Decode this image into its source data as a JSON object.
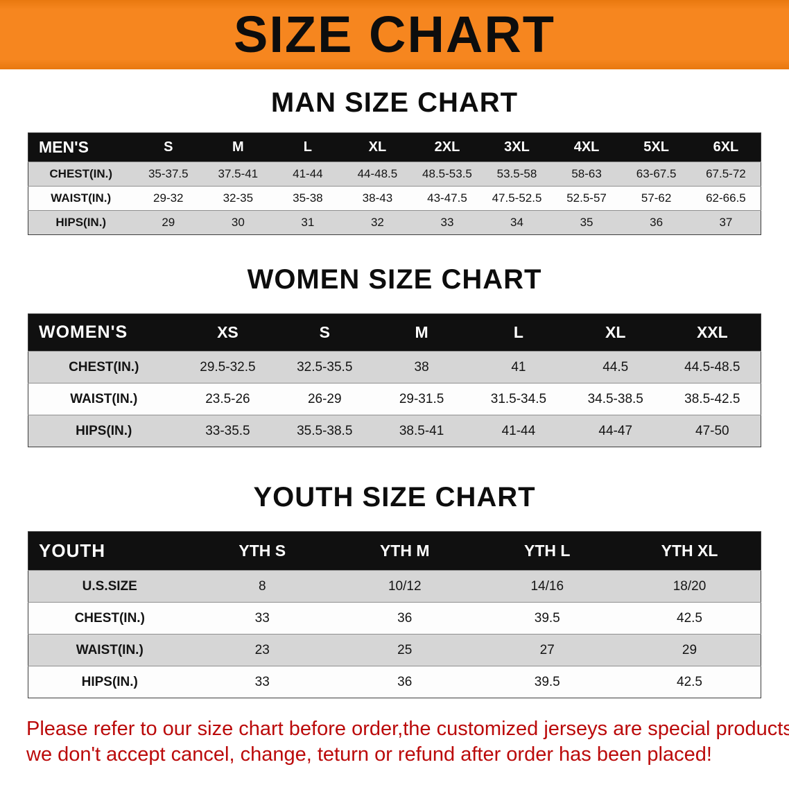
{
  "banner": {
    "title": "SIZE CHART"
  },
  "colors": {
    "banner_bg": "#f6861f",
    "header_bg": "#101010",
    "row_alt_bg": "#d6d6d6",
    "footer_text": "#bb0a0a"
  },
  "sections": [
    {
      "id": "men",
      "heading": "MAN SIZE CHART",
      "header": [
        "MEN'S",
        "S",
        "M",
        "L",
        "XL",
        "2XL",
        "3XL",
        "4XL",
        "5XL",
        "6XL"
      ],
      "rows": [
        [
          "CHEST(IN.)",
          "35-37.5",
          "37.5-41",
          "41-44",
          "44-48.5",
          "48.5-53.5",
          "53.5-58",
          "58-63",
          "63-67.5",
          "67.5-72"
        ],
        [
          "WAIST(IN.)",
          "29-32",
          "32-35",
          "35-38",
          "38-43",
          "43-47.5",
          "47.5-52.5",
          "52.5-57",
          "57-62",
          "62-66.5"
        ],
        [
          "HIPS(IN.)",
          "29",
          "30",
          "31",
          "32",
          "33",
          "34",
          "35",
          "36",
          "37"
        ]
      ]
    },
    {
      "id": "women",
      "heading": "WOMEN SIZE CHART",
      "header": [
        "WOMEN'S",
        "XS",
        "S",
        "M",
        "L",
        "XL",
        "XXL"
      ],
      "rows": [
        [
          "CHEST(IN.)",
          "29.5-32.5",
          "32.5-35.5",
          "38",
          "41",
          "44.5",
          "44.5-48.5"
        ],
        [
          "WAIST(IN.)",
          "23.5-26",
          "26-29",
          "29-31.5",
          "31.5-34.5",
          "34.5-38.5",
          "38.5-42.5"
        ],
        [
          "HIPS(IN.)",
          "33-35.5",
          "35.5-38.5",
          "38.5-41",
          "41-44",
          "44-47",
          "47-50"
        ]
      ]
    },
    {
      "id": "youth",
      "heading": "YOUTH SIZE CHART",
      "header": [
        "YOUTH",
        "YTH S",
        "YTH M",
        "YTH L",
        "YTH XL"
      ],
      "rows": [
        [
          "U.S.SIZE",
          "8",
          "10/12",
          "14/16",
          "18/20"
        ],
        [
          "CHEST(IN.)",
          "33",
          "36",
          "39.5",
          "42.5"
        ],
        [
          "WAIST(IN.)",
          "23",
          "25",
          "27",
          "29"
        ],
        [
          "HIPS(IN.)",
          "33",
          "36",
          "39.5",
          "42.5"
        ]
      ]
    }
  ],
  "footer": {
    "lines": [
      "Please refer to our size chart before order,the customized jerseys are special products,",
      "we don't accept cancel, change, teturn or refund after order has been placed!"
    ]
  }
}
